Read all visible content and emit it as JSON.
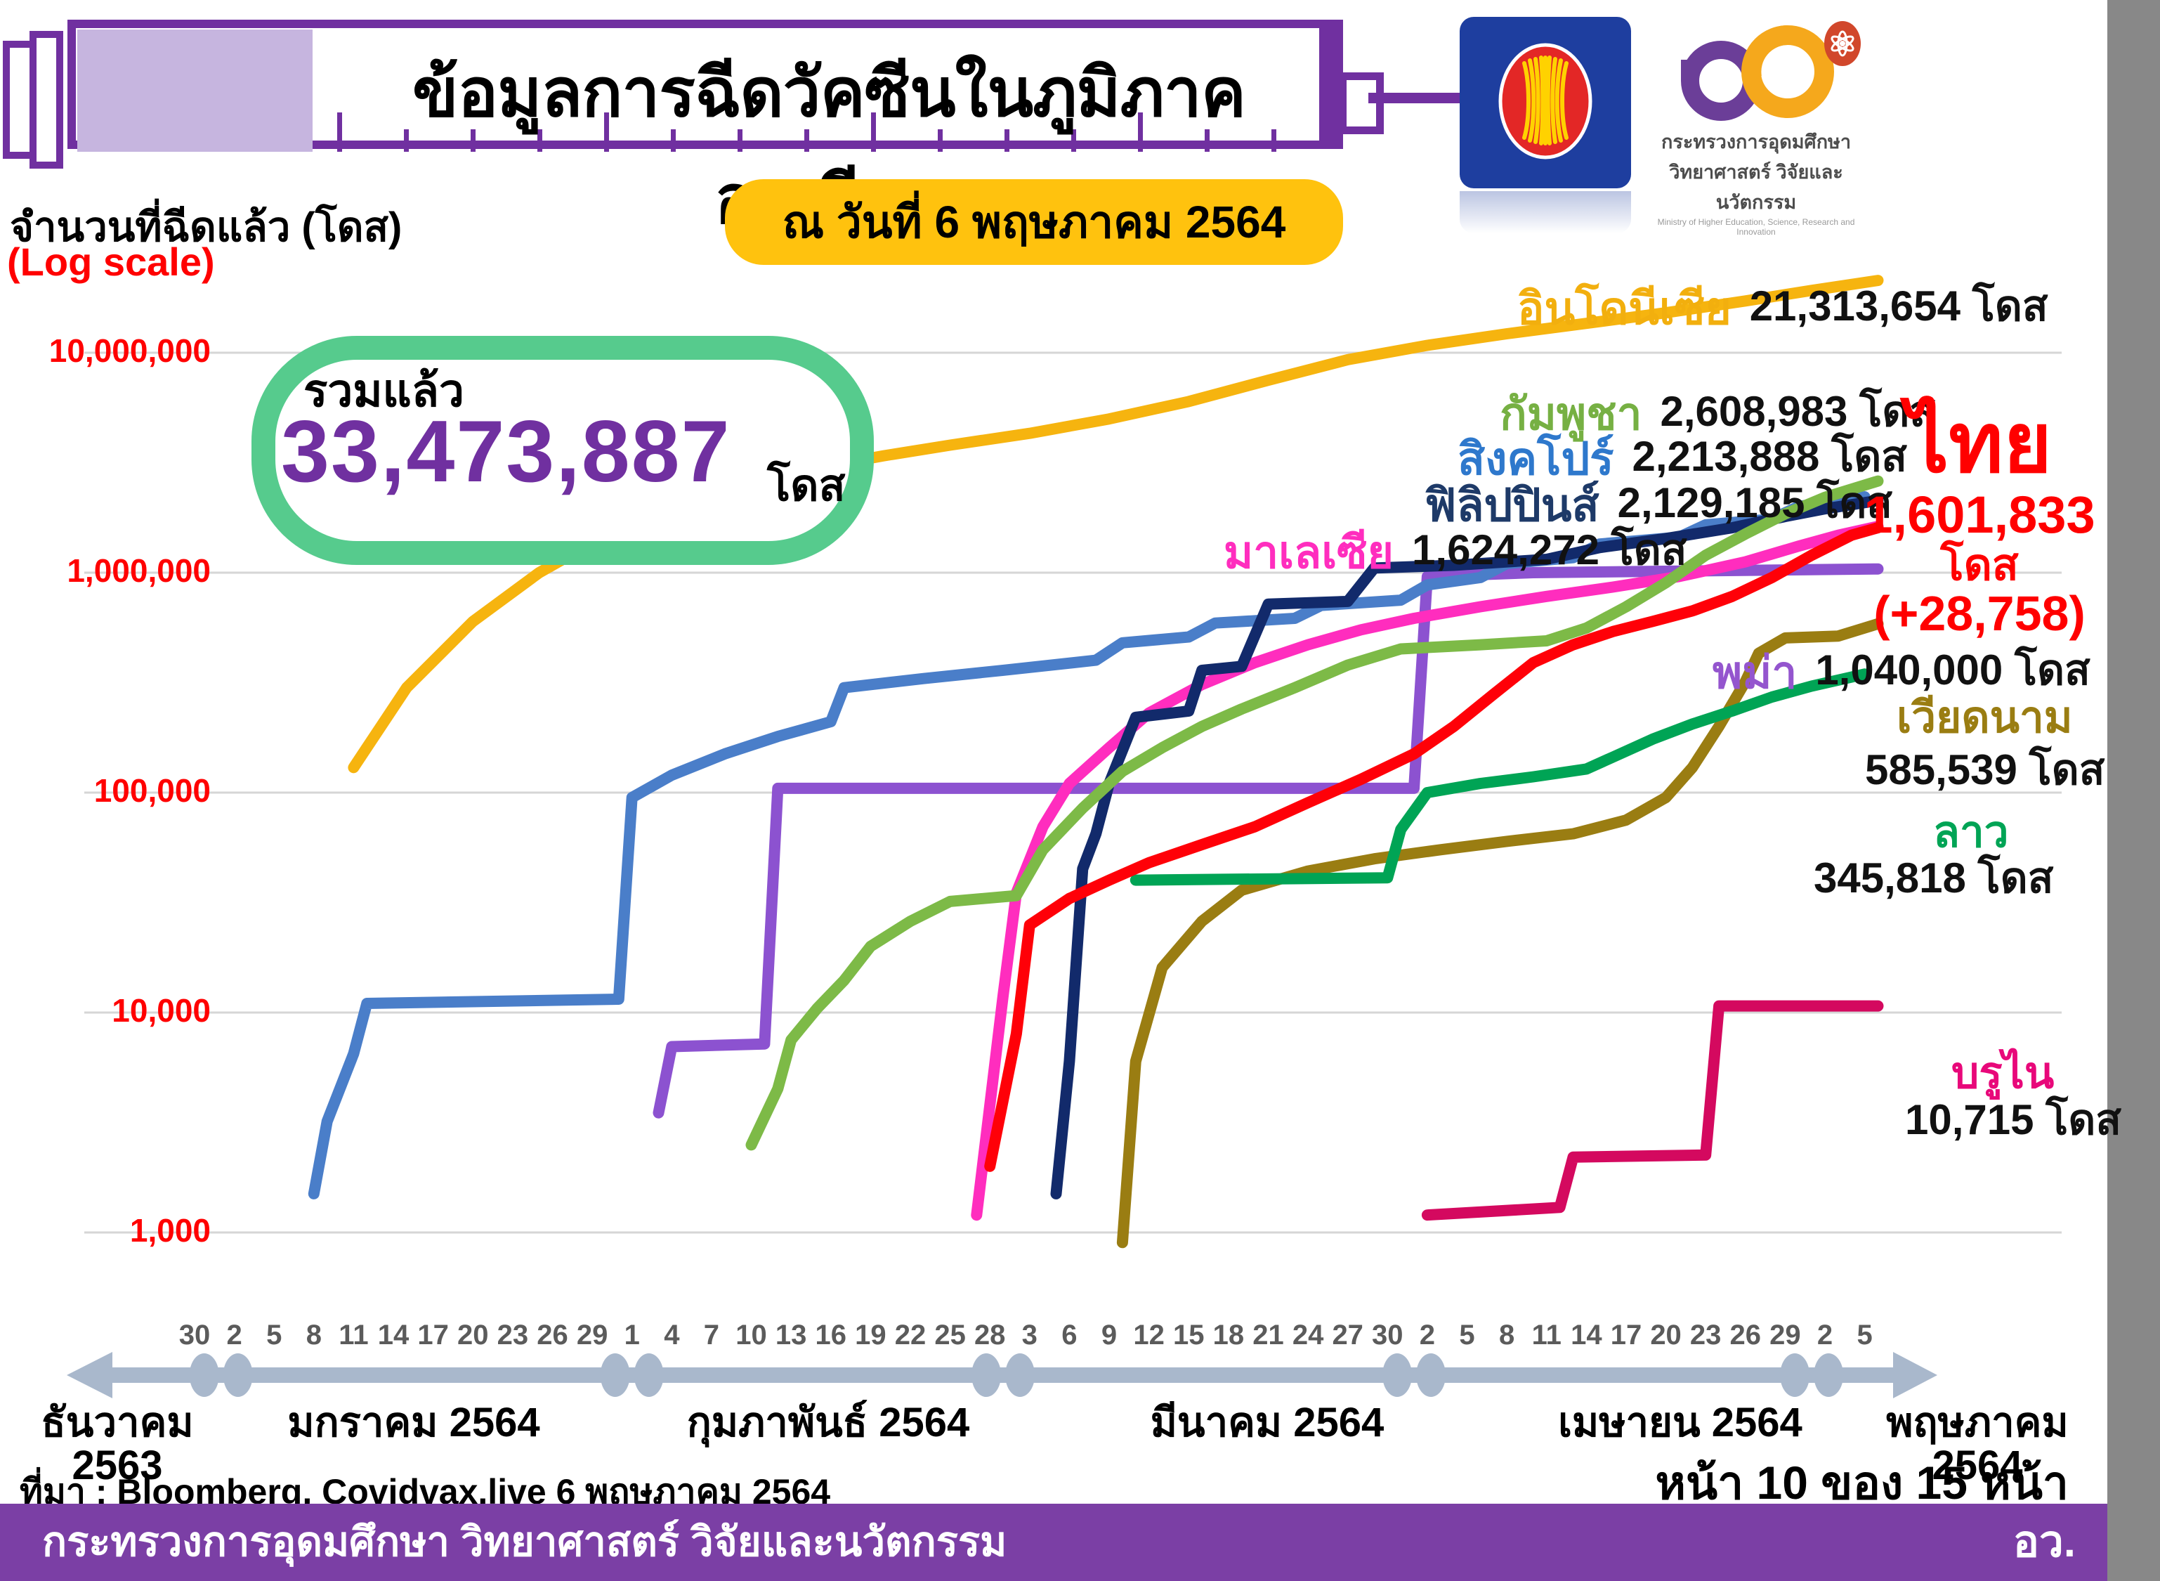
{
  "title": "ข้อมูลการฉีดวัคซีนในภูมิภาคอาเซียน",
  "date_badge": "ณ วันที่ 6 พฤษภาคม 2564",
  "axis": {
    "y_label": "จำนวนที่ฉีดแล้ว (โดส)",
    "y_sublabel": "(Log scale)"
  },
  "total": {
    "label": "รวมแล้ว",
    "value": "33,473,887",
    "unit": "โดส"
  },
  "logos": {
    "asean_flag": "asean-emblem-flag",
    "mhesi_line1": "กระทรวงการอุดมศึกษา",
    "mhesi_line2": "วิทยาศาสตร์ วิจัยและนวัตกรรม",
    "mhesi_line3": "Ministry of Higher Education, Science, Research and Innovation"
  },
  "footer": {
    "source": "ที่มา : Bloomberg, Covidvax.live 6 พฤษภาคม 2564",
    "page": "หน้า 10 ของ 15 หน้า",
    "ministry": "กระทรวงการอุดมศึกษา วิทยาศาสตร์ วิจัยและนวัตกรรม",
    "ministry_abbr": "อว."
  },
  "chart_data": {
    "type": "line",
    "title": "ข้อมูลการฉีดวัคซีนในภูมิภาคอาเซียน ณ วันที่ 6 พฤษภาคม 2564",
    "y_axis": {
      "scale": "log",
      "min": 1000,
      "max": 10000000,
      "tick_labels": [
        "1,000",
        "10,000",
        "100,000",
        "1,000,000",
        "10,000,000"
      ],
      "tick_values": [
        1000,
        10000,
        100000,
        1000000,
        10000000
      ],
      "grid": true
    },
    "x_axis": {
      "start_date": "2020-12-30",
      "end_date": "2021-05-06",
      "tick_interval_days": 3,
      "tick_labels": [
        "30",
        "2",
        "5",
        "8",
        "11",
        "14",
        "17",
        "20",
        "23",
        "26",
        "29",
        "1",
        "4",
        "7",
        "10",
        "13",
        "16",
        "19",
        "22",
        "25",
        "28",
        "3",
        "6",
        "9",
        "12",
        "15",
        "18",
        "21",
        "24",
        "27",
        "30",
        "2",
        "5",
        "8",
        "11",
        "14",
        "17",
        "20",
        "23",
        "26",
        "29",
        "2",
        "5"
      ],
      "months": [
        {
          "line1": "ธันวาคม",
          "line2": "2563",
          "x": 167
        },
        {
          "line1": "มกราคม 2564",
          "line2": "",
          "x": 589
        },
        {
          "line1": "กุมภาพันธ์ 2564",
          "line2": "",
          "x": 1179
        },
        {
          "line1": "มีนาคม 2564",
          "line2": "",
          "x": 1804
        },
        {
          "line1": "เมษายน 2564",
          "line2": "",
          "x": 2392
        },
        {
          "line1": "พฤษภาคม",
          "line2": "2564",
          "x": 2815
        }
      ],
      "month_boundary_days": [
        2,
        33,
        61,
        92,
        122
      ]
    },
    "legend_position": "inline-labels",
    "series": [
      {
        "id": "indonesia",
        "label": "อินโดนีเซีย",
        "value": 21313654,
        "value_label": "21,313,654 โดส",
        "color": "#F6B40F",
        "points": [
          [
            "2021-01-11",
            130000
          ],
          [
            "2021-01-15",
            300000
          ],
          [
            "2021-01-20",
            600000
          ],
          [
            "2021-01-25",
            1000000
          ],
          [
            "2021-01-31",
            1600000
          ],
          [
            "2021-02-05",
            2100000
          ],
          [
            "2021-02-10",
            2600000
          ],
          [
            "2021-02-15",
            3000000
          ],
          [
            "2021-02-20",
            3400000
          ],
          [
            "2021-02-25",
            3800000
          ],
          [
            "2021-03-03",
            4300000
          ],
          [
            "2021-03-09",
            5000000
          ],
          [
            "2021-03-15",
            6000000
          ],
          [
            "2021-03-21",
            7500000
          ],
          [
            "2021-03-27",
            9300000
          ],
          [
            "2021-04-02",
            10800000
          ],
          [
            "2021-04-08",
            12200000
          ],
          [
            "2021-04-14",
            13600000
          ],
          [
            "2021-04-20",
            15200000
          ],
          [
            "2021-04-26",
            17200000
          ],
          [
            "2021-05-01",
            19200000
          ],
          [
            "2021-05-06",
            21313654
          ]
        ]
      },
      {
        "id": "myanmar",
        "label": "พม่า",
        "value": 1040000,
        "value_label": "1,040,000 โดส",
        "color": "#8C52D0",
        "points": [
          [
            "2021-02-03",
            3500
          ],
          [
            "2021-02-04",
            7000
          ],
          [
            "2021-02-11",
            7200
          ],
          [
            "2021-02-12",
            104600
          ],
          [
            "2021-04-01",
            104600
          ],
          [
            "2021-04-02",
            960000
          ],
          [
            "2021-04-10",
            1000000
          ],
          [
            "2021-05-06",
            1040000
          ]
        ]
      },
      {
        "id": "singapore",
        "label": "สิงคโปร์",
        "value": 2213888,
        "value_label": "2,213,888 โดส",
        "color": "#4A7EC9",
        "points": [
          [
            "2021-01-08",
            1500
          ],
          [
            "2021-01-09",
            3200
          ],
          [
            "2021-01-11",
            6500
          ],
          [
            "2021-01-12",
            11000
          ],
          [
            "2021-01-31",
            11500
          ],
          [
            "2021-02-01",
            95000
          ],
          [
            "2021-02-04",
            120000
          ],
          [
            "2021-02-08",
            150000
          ],
          [
            "2021-02-12",
            180000
          ],
          [
            "2021-02-16",
            210000
          ],
          [
            "2021-02-17",
            300000
          ],
          [
            "2021-02-23",
            330000
          ],
          [
            "2021-03-01",
            360000
          ],
          [
            "2021-03-08",
            400000
          ],
          [
            "2021-03-10",
            480000
          ],
          [
            "2021-03-15",
            510000
          ],
          [
            "2021-03-17",
            590000
          ],
          [
            "2021-03-23",
            620000
          ],
          [
            "2021-03-25",
            710000
          ],
          [
            "2021-03-31",
            750000
          ],
          [
            "2021-04-02",
            880000
          ],
          [
            "2021-04-06",
            950000
          ],
          [
            "2021-04-08",
            1100000
          ],
          [
            "2021-04-13",
            1170000
          ],
          [
            "2021-04-15",
            1350000
          ],
          [
            "2021-04-21",
            1450000
          ],
          [
            "2021-04-23",
            1650000
          ],
          [
            "2021-04-28",
            1750000
          ],
          [
            "2021-04-30",
            2000000
          ],
          [
            "2021-05-05",
            2213888
          ]
        ]
      },
      {
        "id": "malaysia",
        "label": "มาเลเซีย",
        "value": 1624272,
        "value_label": "1,624,272 โดส",
        "color": "#FF2DBE",
        "points": [
          [
            "2021-02-27",
            1200
          ],
          [
            "2021-03-01",
            12000
          ],
          [
            "2021-03-02",
            35000
          ],
          [
            "2021-03-04",
            70000
          ],
          [
            "2021-03-06",
            110000
          ],
          [
            "2021-03-09",
            160000
          ],
          [
            "2021-03-12",
            230000
          ],
          [
            "2021-03-16",
            310000
          ],
          [
            "2021-03-20",
            390000
          ],
          [
            "2021-03-24",
            470000
          ],
          [
            "2021-03-28",
            550000
          ],
          [
            "2021-04-01",
            620000
          ],
          [
            "2021-04-06",
            700000
          ],
          [
            "2021-04-11",
            780000
          ],
          [
            "2021-04-16",
            860000
          ],
          [
            "2021-04-21",
            960000
          ],
          [
            "2021-04-26",
            1120000
          ],
          [
            "2021-04-30",
            1320000
          ],
          [
            "2021-05-03",
            1480000
          ],
          [
            "2021-05-06",
            1624272
          ]
        ]
      },
      {
        "id": "philippines",
        "label": "ฟิลิปปินส์",
        "value": 2129185,
        "value_label": "2,129,185 โดส",
        "color": "#122A6B",
        "points": [
          [
            "2021-03-05",
            1500
          ],
          [
            "2021-03-06",
            6000
          ],
          [
            "2021-03-07",
            45000
          ],
          [
            "2021-03-08",
            65000
          ],
          [
            "2021-03-09",
            110000
          ],
          [
            "2021-03-11",
            220000
          ],
          [
            "2021-03-15",
            235000
          ],
          [
            "2021-03-16",
            360000
          ],
          [
            "2021-03-19",
            375000
          ],
          [
            "2021-03-21",
            720000
          ],
          [
            "2021-03-27",
            740000
          ],
          [
            "2021-03-29",
            1050000
          ],
          [
            "2021-04-04",
            1080000
          ],
          [
            "2021-04-11",
            1150000
          ],
          [
            "2021-04-15",
            1300000
          ],
          [
            "2021-04-20",
            1430000
          ],
          [
            "2021-04-25",
            1600000
          ],
          [
            "2021-04-29",
            1800000
          ],
          [
            "2021-05-02",
            1950000
          ],
          [
            "2021-05-06",
            2129185
          ]
        ]
      },
      {
        "id": "vietnam",
        "label": "เวียดนาม",
        "value": 585539,
        "value_label": "585,539 โดส",
        "color": "#9A7D12",
        "points": [
          [
            "2021-03-10",
            900
          ],
          [
            "2021-03-11",
            6000
          ],
          [
            "2021-03-13",
            16000
          ],
          [
            "2021-03-16",
            26000
          ],
          [
            "2021-03-19",
            36000
          ],
          [
            "2021-03-24",
            44000
          ],
          [
            "2021-03-29",
            50000
          ],
          [
            "2021-04-03",
            55000
          ],
          [
            "2021-04-08",
            60000
          ],
          [
            "2021-04-13",
            65000
          ],
          [
            "2021-04-17",
            75000
          ],
          [
            "2021-04-20",
            95000
          ],
          [
            "2021-04-22",
            130000
          ],
          [
            "2021-04-24",
            200000
          ],
          [
            "2021-04-26",
            320000
          ],
          [
            "2021-04-27",
            430000
          ],
          [
            "2021-04-29",
            505000
          ],
          [
            "2021-05-03",
            515000
          ],
          [
            "2021-05-06",
            585539
          ]
        ]
      },
      {
        "id": "laos",
        "label": "ลาว",
        "value": 345818,
        "value_label": "345,818 โดส",
        "color": "#00A455",
        "points": [
          [
            "2021-03-11",
            40000
          ],
          [
            "2021-03-30",
            41000
          ],
          [
            "2021-03-31",
            68000
          ],
          [
            "2021-04-02",
            100000
          ],
          [
            "2021-04-06",
            110000
          ],
          [
            "2021-04-10",
            118000
          ],
          [
            "2021-04-14",
            128000
          ],
          [
            "2021-04-16",
            145000
          ],
          [
            "2021-04-19",
            175000
          ],
          [
            "2021-04-22",
            205000
          ],
          [
            "2021-04-25",
            235000
          ],
          [
            "2021-04-28",
            272000
          ],
          [
            "2021-05-01",
            305000
          ],
          [
            "2021-05-05",
            345818
          ]
        ]
      },
      {
        "id": "brunei",
        "label": "บรูไน",
        "value": 10715,
        "value_label": "10,715 โดส",
        "color": "#D4095F",
        "points": [
          [
            "2021-04-02",
            1200
          ],
          [
            "2021-04-12",
            1300
          ],
          [
            "2021-04-13",
            2200
          ],
          [
            "2021-04-23",
            2250
          ],
          [
            "2021-04-24",
            10715
          ],
          [
            "2021-05-06",
            10715
          ]
        ]
      },
      {
        "id": "thailand",
        "label": "ไทย",
        "value": 1601833,
        "value_label": "1,601,833 โดส",
        "value_text": "1,601,833",
        "unit": "โดส",
        "delta": "(+28,758)",
        "color": "#FF0008",
        "points": [
          [
            "2021-02-28",
            2000
          ],
          [
            "2021-03-02",
            8000
          ],
          [
            "2021-03-03",
            25000
          ],
          [
            "2021-03-06",
            33000
          ],
          [
            "2021-03-09",
            40000
          ],
          [
            "2021-03-12",
            48000
          ],
          [
            "2021-03-16",
            58000
          ],
          [
            "2021-03-20",
            70000
          ],
          [
            "2021-03-24",
            90000
          ],
          [
            "2021-03-28",
            115000
          ],
          [
            "2021-04-01",
            150000
          ],
          [
            "2021-04-04",
            200000
          ],
          [
            "2021-04-07",
            280000
          ],
          [
            "2021-04-10",
            390000
          ],
          [
            "2021-04-13",
            470000
          ],
          [
            "2021-04-16",
            540000
          ],
          [
            "2021-04-19",
            600000
          ],
          [
            "2021-04-22",
            670000
          ],
          [
            "2021-04-25",
            780000
          ],
          [
            "2021-04-28",
            950000
          ],
          [
            "2021-05-01",
            1200000
          ],
          [
            "2021-05-04",
            1480000
          ],
          [
            "2021-05-06",
            1601833
          ]
        ]
      },
      {
        "id": "cambodia",
        "label": "กัมพูชา",
        "value": 2608983,
        "value_label": "2,608,983 โดส",
        "color": "#7DBA47",
        "points": [
          [
            "2021-02-10",
            2500
          ],
          [
            "2021-02-12",
            4500
          ],
          [
            "2021-02-13",
            7500
          ],
          [
            "2021-02-15",
            10500
          ],
          [
            "2021-02-17",
            14000
          ],
          [
            "2021-02-19",
            20000
          ],
          [
            "2021-02-22",
            26000
          ],
          [
            "2021-02-25",
            32000
          ],
          [
            "2021-03-02",
            34000
          ],
          [
            "2021-03-04",
            55000
          ],
          [
            "2021-03-07",
            85000
          ],
          [
            "2021-03-10",
            125000
          ],
          [
            "2021-03-13",
            160000
          ],
          [
            "2021-03-16",
            200000
          ],
          [
            "2021-03-19",
            240000
          ],
          [
            "2021-03-23",
            300000
          ],
          [
            "2021-03-27",
            380000
          ],
          [
            "2021-03-31",
            450000
          ],
          [
            "2021-04-06",
            470000
          ],
          [
            "2021-04-11",
            490000
          ],
          [
            "2021-04-14",
            560000
          ],
          [
            "2021-04-17",
            700000
          ],
          [
            "2021-04-20",
            900000
          ],
          [
            "2021-04-23",
            1200000
          ],
          [
            "2021-04-26",
            1500000
          ],
          [
            "2021-04-29",
            1850000
          ],
          [
            "2021-05-02",
            2200000
          ],
          [
            "2021-05-06",
            2608983
          ]
        ]
      }
    ]
  }
}
